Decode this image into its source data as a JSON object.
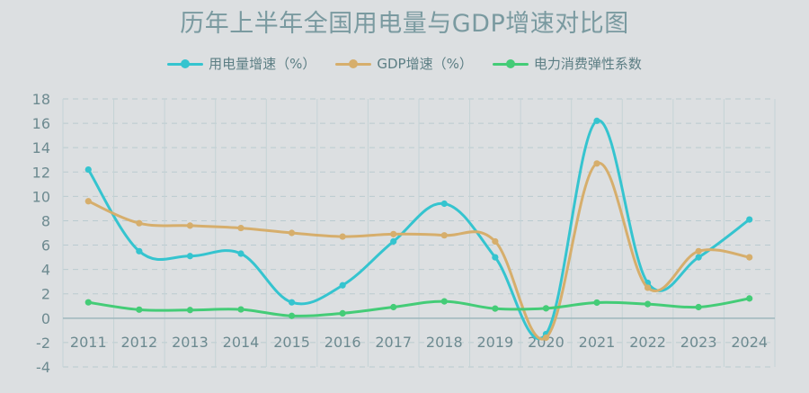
{
  "chart_data": {
    "type": "line",
    "title": "历年上半年全国用电量与GDP增速对比图",
    "categories": [
      "2011",
      "2012",
      "2013",
      "2014",
      "2015",
      "2016",
      "2017",
      "2018",
      "2019",
      "2020",
      "2021",
      "2022",
      "2023",
      "2024"
    ],
    "series": [
      {
        "name": "用电量增速（%）",
        "color": "#35c4cf",
        "values": [
          12.2,
          5.5,
          5.1,
          5.3,
          1.3,
          2.7,
          6.3,
          9.4,
          5.0,
          -1.3,
          16.2,
          2.9,
          5.0,
          8.1
        ]
      },
      {
        "name": "GDP增速（%）",
        "color": "#d6ae6c",
        "values": [
          9.6,
          7.8,
          7.6,
          7.4,
          7.0,
          6.7,
          6.9,
          6.8,
          6.3,
          -1.6,
          12.7,
          2.5,
          5.5,
          5.0
        ]
      },
      {
        "name": "电力消费弹性系数",
        "color": "#44cc77",
        "values": [
          1.3,
          0.7,
          0.67,
          0.72,
          0.19,
          0.4,
          0.91,
          1.38,
          0.79,
          0.81,
          1.28,
          1.16,
          0.91,
          1.62
        ]
      }
    ],
    "yticks": [
      -4,
      -2,
      0,
      2,
      4,
      6,
      8,
      10,
      12,
      14,
      16,
      18
    ],
    "ylim": [
      -4,
      18
    ],
    "grid": true,
    "legend": "top-center"
  }
}
